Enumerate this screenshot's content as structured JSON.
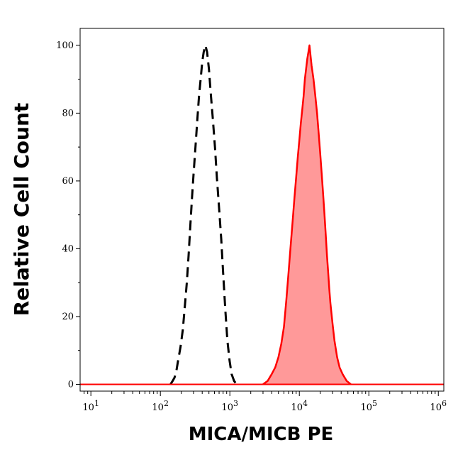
{
  "chart_data": {
    "type": "area",
    "title": "",
    "xlabel": "MICA/MICB PE",
    "ylabel": "Relative Cell Count",
    "x_scale": "log",
    "xlim": [
      7,
      1200000
    ],
    "ylim": [
      -2,
      105
    ],
    "x_ticks": [
      {
        "value": 10,
        "base": "10",
        "exp": "1"
      },
      {
        "value": 100,
        "base": "10",
        "exp": "2"
      },
      {
        "value": 1000,
        "base": "10",
        "exp": "3"
      },
      {
        "value": 10000,
        "base": "10",
        "exp": "4"
      },
      {
        "value": 100000,
        "base": "10",
        "exp": "5"
      },
      {
        "value": 1000000,
        "base": "10",
        "exp": "6"
      }
    ],
    "y_ticks": [
      {
        "value": 0,
        "label": "0"
      },
      {
        "value": 20,
        "label": "20"
      },
      {
        "value": 40,
        "label": "40"
      },
      {
        "value": 60,
        "label": "60"
      },
      {
        "value": 80,
        "label": "80"
      },
      {
        "value": 100,
        "label": "100"
      }
    ],
    "grid": false,
    "legend": "none",
    "series": [
      {
        "style": "dashed-outline",
        "color": "#000000",
        "points": [
          [
            140,
            0
          ],
          [
            150,
            1
          ],
          [
            160,
            2
          ],
          [
            170,
            4
          ],
          [
            180,
            7
          ],
          [
            195,
            11
          ],
          [
            210,
            16
          ],
          [
            225,
            23
          ],
          [
            240,
            30
          ],
          [
            255,
            38
          ],
          [
            270,
            47
          ],
          [
            285,
            55
          ],
          [
            300,
            62
          ],
          [
            320,
            70
          ],
          [
            340,
            78
          ],
          [
            360,
            85
          ],
          [
            380,
            90
          ],
          [
            400,
            95
          ],
          [
            420,
            98
          ],
          [
            445,
            100
          ],
          [
            470,
            98
          ],
          [
            500,
            93
          ],
          [
            530,
            86
          ],
          [
            570,
            78
          ],
          [
            610,
            70
          ],
          [
            650,
            61
          ],
          [
            700,
            52
          ],
          [
            750,
            43
          ],
          [
            800,
            33
          ],
          [
            860,
            22
          ],
          [
            920,
            13
          ],
          [
            990,
            7
          ],
          [
            1060,
            3
          ],
          [
            1150,
            1
          ],
          [
            1250,
            0
          ]
        ]
      },
      {
        "style": "filled",
        "color": "#ff0000",
        "fill": "#ff9999",
        "points": [
          [
            3000,
            0
          ],
          [
            3500,
            1
          ],
          [
            4000,
            3
          ],
          [
            4500,
            5
          ],
          [
            5000,
            8
          ],
          [
            5500,
            12
          ],
          [
            6000,
            17
          ],
          [
            6500,
            25
          ],
          [
            7000,
            33
          ],
          [
            7500,
            41
          ],
          [
            8000,
            48
          ],
          [
            8500,
            55
          ],
          [
            9000,
            61
          ],
          [
            9500,
            67
          ],
          [
            10000,
            72
          ],
          [
            10500,
            77
          ],
          [
            11000,
            81
          ],
          [
            11500,
            85
          ],
          [
            12000,
            90
          ],
          [
            12500,
            93
          ],
          [
            13000,
            96
          ],
          [
            13500,
            98
          ],
          [
            14000,
            100
          ],
          [
            14500,
            97
          ],
          [
            15000,
            94
          ],
          [
            16000,
            90
          ],
          [
            17000,
            85
          ],
          [
            18000,
            80
          ],
          [
            19000,
            74
          ],
          [
            20000,
            68
          ],
          [
            21000,
            62
          ],
          [
            22000,
            56
          ],
          [
            23000,
            50
          ],
          [
            24000,
            44
          ],
          [
            25000,
            38
          ],
          [
            26000,
            33
          ],
          [
            27000,
            28
          ],
          [
            28000,
            24
          ],
          [
            30000,
            18
          ],
          [
            32000,
            13
          ],
          [
            35000,
            8
          ],
          [
            38000,
            5
          ],
          [
            42000,
            3
          ],
          [
            48000,
            1
          ],
          [
            55000,
            0
          ]
        ]
      }
    ]
  }
}
